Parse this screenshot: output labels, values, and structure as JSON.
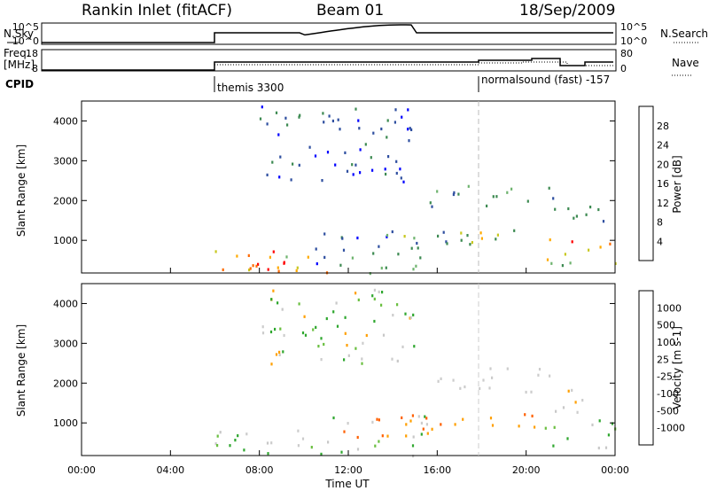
{
  "header": {
    "site": "Rankin Inlet (fitACF)",
    "beam": "Beam 01",
    "date": "18/Sep/2009"
  },
  "noise_panel": {
    "left_label": "N.Sky",
    "right_label": "N.Search",
    "left_ticks": [
      "10^5",
      "10^0"
    ],
    "right_ticks": [
      "10^5",
      "10^0"
    ]
  },
  "freq_panel": {
    "left_label_1": "Freq.",
    "left_label_2": "[MHz]",
    "right_label": "Nave",
    "left_ticks": [
      "18",
      "8"
    ],
    "right_ticks": [
      "80",
      "0"
    ],
    "cpid_label": "CPID",
    "modes": [
      {
        "start_hour": 6,
        "text": "themis 3300"
      },
      {
        "start_hour": 18,
        "text": "normalsound (fast) -157"
      }
    ]
  },
  "colors": {
    "power": [
      "#0000ff",
      "#2f4fa0",
      "#3d8a52",
      "#6fb46f",
      "#c8c820",
      "#ffaa00",
      "#ff6a00",
      "#ff0000"
    ],
    "velocity": [
      "#ff0000",
      "#ff6000",
      "#ff9f00",
      "#cccccc",
      "#c8c8c8",
      "#2fa72f",
      "#6abf40",
      "#2f4fbf",
      "#0000c8"
    ],
    "velocity_ground": "#bbbbbb"
  },
  "chart_data": [
    {
      "type": "heatmap",
      "name": "power",
      "xlabel": "",
      "ylabel": "Slant Range [km]",
      "x_range_hours": [
        0,
        24
      ],
      "y_range_km": [
        180,
        4500
      ],
      "y_ticks": [
        "1000",
        "2000",
        "3000",
        "4000"
      ],
      "colorbar_label": "Power [dB]",
      "colorbar_ticks": [
        "4",
        "8",
        "12",
        "16",
        "20",
        "24",
        "28"
      ],
      "colorbar_range": [
        0,
        32
      ],
      "regions": [
        {
          "x0": 6.0,
          "x1": 10.5,
          "y0": 200,
          "y1": 800,
          "v0": 12,
          "v1": 30
        },
        {
          "x0": 6.0,
          "x1": 11.5,
          "y0": 200,
          "y1": 550,
          "v0": 20,
          "v1": 31
        },
        {
          "x0": 6.0,
          "x1": 6.3,
          "y0": 1500,
          "y1": 1750,
          "v0": 4,
          "v1": 12
        },
        {
          "x0": 10.5,
          "x1": 15.5,
          "y0": 200,
          "y1": 1200,
          "v0": 2,
          "v1": 16
        },
        {
          "x0": 13.5,
          "x1": 17.5,
          "y0": 700,
          "y1": 1300,
          "v0": 6,
          "v1": 20
        },
        {
          "x0": 15.5,
          "x1": 21.5,
          "y0": 1800,
          "y1": 2400,
          "v0": 4,
          "v1": 14
        },
        {
          "x0": 17.0,
          "x1": 21.0,
          "y0": 900,
          "y1": 1300,
          "v0": 8,
          "v1": 22
        },
        {
          "x0": 20.5,
          "x1": 24.0,
          "y0": 400,
          "y1": 1100,
          "v0": 10,
          "v1": 30
        },
        {
          "x0": 21.0,
          "x1": 23.5,
          "y0": 1300,
          "y1": 1900,
          "v0": 4,
          "v1": 12
        },
        {
          "x0": 8.0,
          "x1": 15.0,
          "y0": 2500,
          "y1": 4400,
          "v0": 2,
          "v1": 10
        }
      ]
    },
    {
      "type": "heatmap",
      "name": "velocity",
      "xlabel": "Time UT",
      "ylabel": "Slant Range [km]",
      "x_range_hours": [
        0,
        24
      ],
      "x_ticks": [
        "00:00",
        "04:00",
        "08:00",
        "12:00",
        "16:00",
        "20:00",
        "00:00"
      ],
      "y_range_km": [
        180,
        4500
      ],
      "y_ticks": [
        "1000",
        "2000",
        "3000",
        "4000"
      ],
      "colorbar_label": "Velocity [m s-1]",
      "colorbar_ticks": [
        "-1000",
        "-500",
        "-100",
        "-25",
        "25",
        "100",
        "500",
        "1000"
      ],
      "regions": [
        {
          "x0": 6.0,
          "x1": 10.5,
          "y0": 200,
          "y1": 900,
          "v0": 3,
          "v1": 7
        },
        {
          "x0": 8.5,
          "x1": 10.0,
          "y0": 550,
          "y1": 850,
          "v0": 3,
          "v1": 4
        },
        {
          "x0": 6.0,
          "x1": 6.3,
          "y0": 1500,
          "y1": 1750,
          "v0": 5,
          "v1": 7
        },
        {
          "x0": 10.5,
          "x1": 15.5,
          "y0": 200,
          "y1": 1200,
          "v0": 1,
          "v1": 7
        },
        {
          "x0": 13.5,
          "x1": 17.5,
          "y0": 700,
          "y1": 1300,
          "v0": 1,
          "v1": 3
        },
        {
          "x0": 15.5,
          "x1": 21.5,
          "y0": 1800,
          "y1": 2400,
          "v0": 3,
          "v1": 4
        },
        {
          "x0": 17.0,
          "x1": 21.0,
          "y0": 900,
          "y1": 1300,
          "v0": 1,
          "v1": 3
        },
        {
          "x0": 20.5,
          "x1": 24.0,
          "y0": 400,
          "y1": 1100,
          "v0": 4,
          "v1": 7
        },
        {
          "x0": 21.0,
          "x1": 23.5,
          "y0": 1300,
          "y1": 1900,
          "v0": 2,
          "v1": 5
        },
        {
          "x0": 8.0,
          "x1": 15.0,
          "y0": 2500,
          "y1": 4400,
          "v0": 2,
          "v1": 7
        }
      ]
    }
  ]
}
